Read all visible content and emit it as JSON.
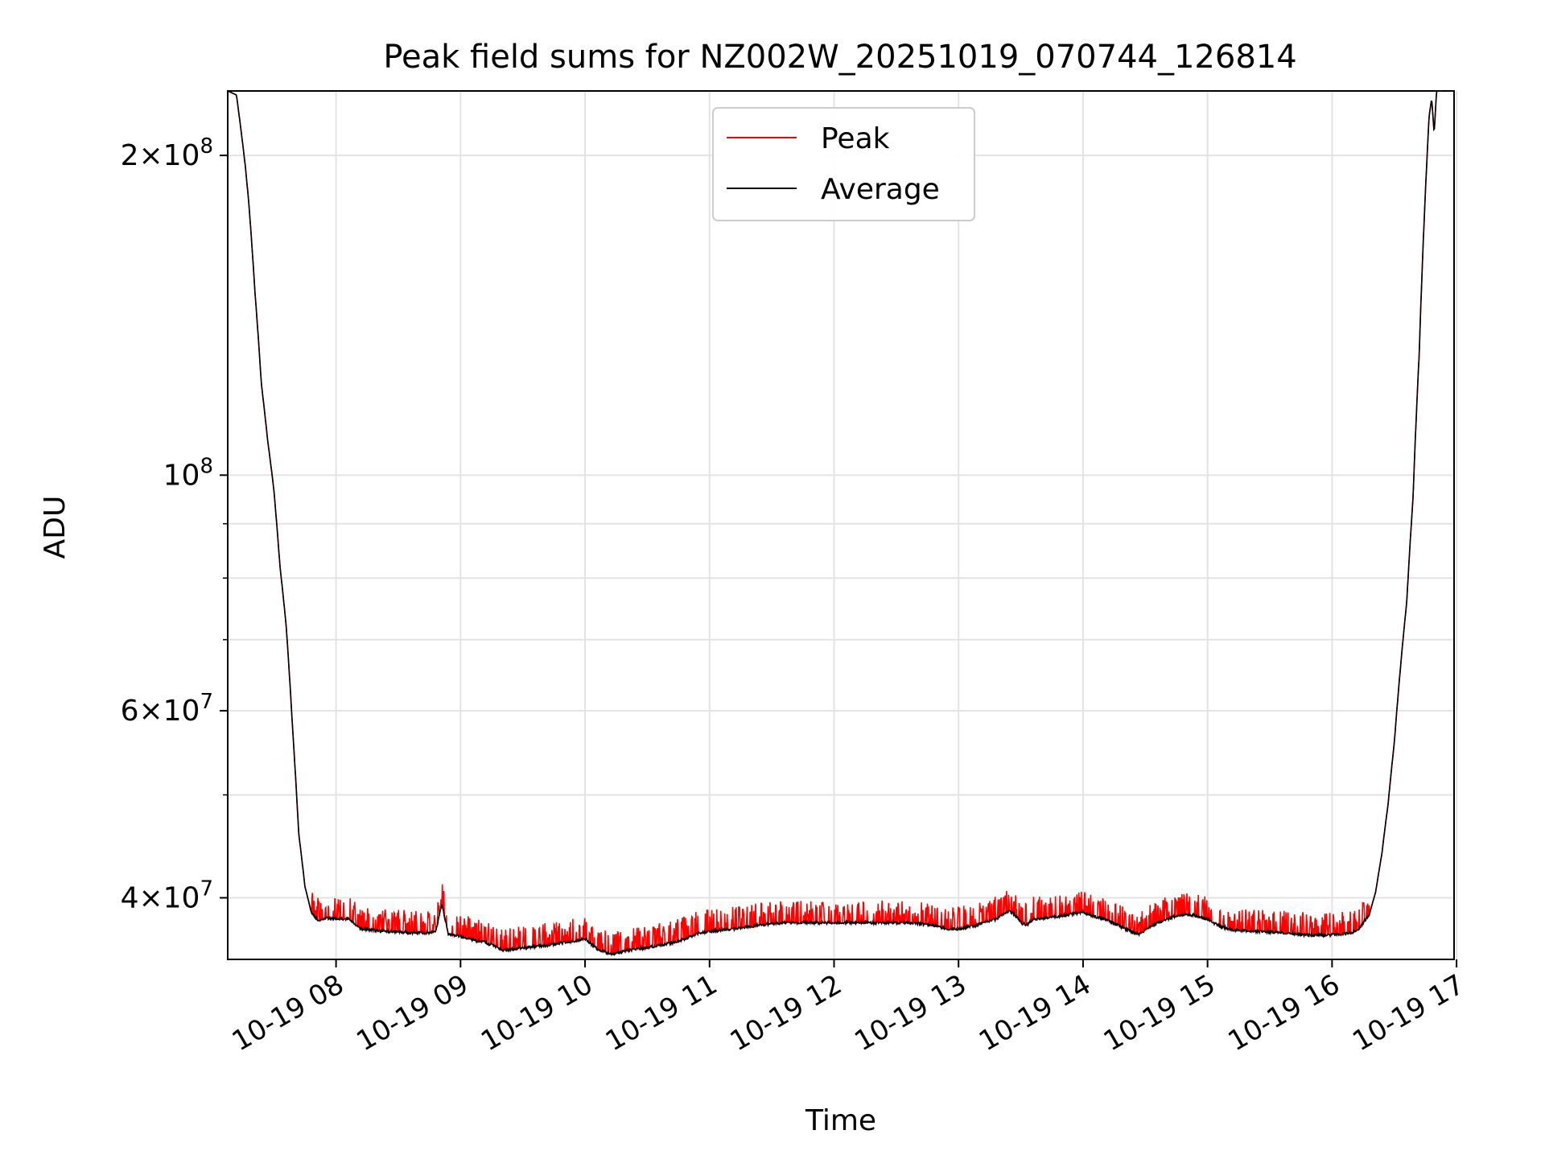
{
  "chart_data": {
    "type": "line",
    "title": "Peak field sums for NZ002W_20251019_070744_126814",
    "xlabel": "Time",
    "ylabel": "ADU",
    "yscale": "log",
    "xlim_hours": [
      7.13,
      16.98
    ],
    "ylim": [
      35000000,
      230000000
    ],
    "x_ticks": [
      {
        "hour": 8,
        "label": "10-19 08"
      },
      {
        "hour": 9,
        "label": "10-19 09"
      },
      {
        "hour": 10,
        "label": "10-19 10"
      },
      {
        "hour": 11,
        "label": "10-19 11"
      },
      {
        "hour": 12,
        "label": "10-19 12"
      },
      {
        "hour": 13,
        "label": "10-19 13"
      },
      {
        "hour": 14,
        "label": "10-19 14"
      },
      {
        "hour": 15,
        "label": "10-19 15"
      },
      {
        "hour": 16,
        "label": "10-19 16"
      },
      {
        "hour": 17,
        "label": "10-19 17"
      }
    ],
    "y_major_ticks": [
      {
        "value": 40000000,
        "mant": "4",
        "exp": "7"
      },
      {
        "value": 60000000,
        "mant": "6",
        "exp": "7"
      },
      {
        "value": 100000000,
        "mant": "",
        "exp": "8"
      },
      {
        "value": 200000000,
        "mant": "2",
        "exp": "8"
      }
    ],
    "y_minor_ticks": [
      50000000,
      70000000,
      80000000,
      90000000
    ],
    "grid": true,
    "legend_position": "top-center",
    "series": [
      {
        "name": "Peak",
        "color": "#ff0000"
      },
      {
        "name": "Average",
        "color": "#000000"
      }
    ],
    "average_points": [
      [
        7.13,
        230000000
      ],
      [
        7.2,
        228000000
      ],
      [
        7.27,
        196000000
      ],
      [
        7.3,
        180000000
      ],
      [
        7.35,
        148000000
      ],
      [
        7.4,
        122000000
      ],
      [
        7.45,
        108000000
      ],
      [
        7.5,
        97000000
      ],
      [
        7.55,
        82000000
      ],
      [
        7.6,
        72000000
      ],
      [
        7.65,
        58000000
      ],
      [
        7.7,
        46000000
      ],
      [
        7.75,
        41000000
      ],
      [
        7.8,
        38800000
      ],
      [
        7.85,
        38100000
      ],
      [
        7.95,
        38300000
      ],
      [
        8.1,
        38200000
      ],
      [
        8.2,
        37400000
      ],
      [
        8.4,
        37200000
      ],
      [
        8.6,
        37100000
      ],
      [
        8.8,
        37100000
      ],
      [
        8.85,
        39500000
      ],
      [
        8.9,
        37000000
      ],
      [
        9.0,
        36800000
      ],
      [
        9.1,
        36500000
      ],
      [
        9.2,
        36300000
      ],
      [
        9.3,
        35900000
      ],
      [
        9.35,
        35700000
      ],
      [
        9.5,
        35900000
      ],
      [
        9.7,
        36100000
      ],
      [
        9.9,
        36400000
      ],
      [
        10.0,
        36600000
      ],
      [
        10.1,
        35800000
      ],
      [
        10.2,
        35400000
      ],
      [
        10.35,
        35700000
      ],
      [
        10.5,
        35900000
      ],
      [
        10.7,
        36300000
      ],
      [
        10.8,
        36600000
      ],
      [
        10.9,
        37000000
      ],
      [
        11.0,
        37200000
      ],
      [
        11.2,
        37400000
      ],
      [
        11.4,
        37700000
      ],
      [
        11.6,
        37900000
      ],
      [
        11.8,
        37900000
      ],
      [
        12.0,
        37900000
      ],
      [
        12.2,
        37900000
      ],
      [
        12.4,
        37900000
      ],
      [
        12.6,
        37900000
      ],
      [
        12.8,
        37700000
      ],
      [
        12.9,
        37400000
      ],
      [
        13.0,
        37400000
      ],
      [
        13.15,
        37700000
      ],
      [
        13.3,
        38200000
      ],
      [
        13.4,
        38900000
      ],
      [
        13.45,
        38600000
      ],
      [
        13.5,
        37900000
      ],
      [
        13.55,
        37700000
      ],
      [
        13.6,
        38200000
      ],
      [
        13.7,
        38300000
      ],
      [
        13.8,
        38400000
      ],
      [
        14.0,
        38800000
      ],
      [
        14.1,
        38400000
      ],
      [
        14.2,
        38100000
      ],
      [
        14.3,
        37600000
      ],
      [
        14.4,
        37100000
      ],
      [
        14.45,
        37000000
      ],
      [
        14.5,
        37300000
      ],
      [
        14.6,
        37900000
      ],
      [
        14.7,
        38300000
      ],
      [
        14.8,
        38600000
      ],
      [
        14.9,
        38500000
      ],
      [
        15.0,
        38200000
      ],
      [
        15.1,
        37600000
      ],
      [
        15.2,
        37300000
      ],
      [
        15.4,
        37200000
      ],
      [
        15.6,
        37100000
      ],
      [
        15.8,
        36900000
      ],
      [
        16.0,
        36900000
      ],
      [
        16.1,
        37000000
      ],
      [
        16.2,
        37200000
      ],
      [
        16.3,
        38600000
      ],
      [
        16.35,
        40500000
      ],
      [
        16.4,
        44000000
      ],
      [
        16.45,
        49000000
      ],
      [
        16.5,
        56000000
      ],
      [
        16.55,
        66000000
      ],
      [
        16.6,
        76000000
      ],
      [
        16.65,
        95000000
      ],
      [
        16.7,
        130000000
      ],
      [
        16.75,
        185000000
      ],
      [
        16.78,
        218000000
      ],
      [
        16.8,
        226000000
      ],
      [
        16.82,
        210000000
      ],
      [
        16.84,
        230000000
      ],
      [
        16.98,
        230000000
      ]
    ]
  }
}
